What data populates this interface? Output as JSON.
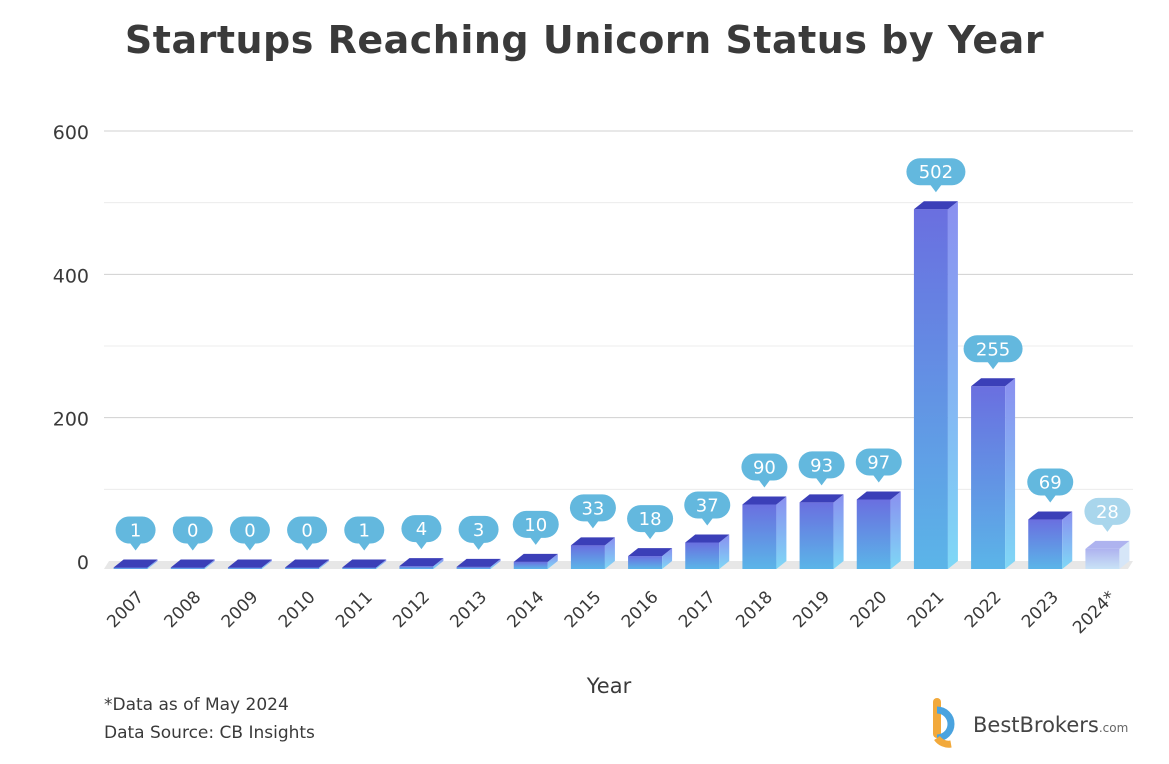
{
  "page": {
    "title": "Startups Reaching Unicorn Status by Year"
  },
  "footnotes": {
    "note": "*Data as of May 2024",
    "source": "Data Source: CB Insights"
  },
  "logo": {
    "name": "BestBrokers",
    "suffix": ".com"
  },
  "colors": {
    "bar_top": "#6a6fe0",
    "bar_bottom": "#5bb5e8",
    "bar_top_face": "#3b3fb8",
    "label_bubble": "#63b8de",
    "label_bubble_faded": "#a9d6ec",
    "bar_faded_top": "#aeb3ef",
    "bar_faded_bottom": "#c9e3f6",
    "grid": "#d0d0d0"
  },
  "chart_data": {
    "type": "bar",
    "title": "Startups Reaching Unicorn Status by Year",
    "xlabel": "Year",
    "ylabel": "",
    "ylim": [
      0,
      600
    ],
    "yticks": [
      0,
      200,
      400,
      600
    ],
    "grid": true,
    "categories": [
      "2007",
      "2008",
      "2009",
      "2010",
      "2011",
      "2012",
      "2013",
      "2014",
      "2015",
      "2016",
      "2017",
      "2018",
      "2019",
      "2020",
      "2021",
      "2022",
      "2023",
      "2024*"
    ],
    "values": [
      1,
      0,
      0,
      0,
      1,
      4,
      3,
      10,
      33,
      18,
      37,
      90,
      93,
      97,
      502,
      255,
      69,
      28
    ],
    "partial_categories": [
      "2024*"
    ]
  }
}
